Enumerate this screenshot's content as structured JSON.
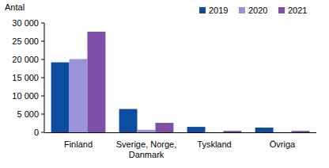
{
  "chart_data": {
    "type": "bar",
    "y_label": "Antal",
    "categories": [
      "Finland",
      "Sverige, Norge, Danmark",
      "Tyskland",
      "Övriga"
    ],
    "series": [
      {
        "name": "2019",
        "color": "#0c4da2",
        "values": [
          19200,
          6400,
          1500,
          1300
        ]
      },
      {
        "name": "2020",
        "color": "#9b93d9",
        "values": [
          20100,
          700,
          50,
          50
        ]
      },
      {
        "name": "2021",
        "color": "#7d4fa6",
        "values": [
          27600,
          2600,
          400,
          400
        ]
      }
    ],
    "ylim": [
      0,
      30000
    ],
    "yticks": [
      0,
      {
        "value": 5000,
        "label": "5 000"
      },
      {
        "value": 10000,
        "label": "10 000"
      },
      {
        "value": 15000,
        "label": "15 000"
      },
      {
        "value": 20000,
        "label": "20 000"
      },
      {
        "value": 25000,
        "label": "25 000"
      },
      {
        "value": 30000,
        "label": "30 000"
      }
    ],
    "grid": false,
    "legend": "top-right"
  }
}
